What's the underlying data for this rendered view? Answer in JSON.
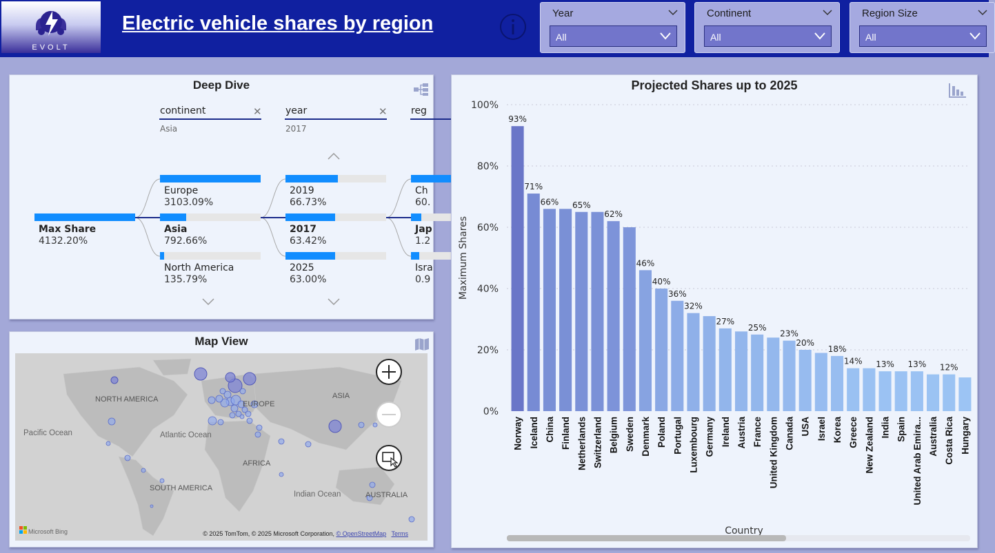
{
  "header": {
    "logo_text": "EVOLT",
    "title": "Electric vehicle shares by region"
  },
  "slicers": [
    {
      "title": "Year",
      "value": "All"
    },
    {
      "title": "Continent",
      "value": "All"
    },
    {
      "title": "Region Size",
      "value": "All"
    }
  ],
  "deep_dive": {
    "title": "Deep Dive",
    "levels": [
      {
        "label": "continent",
        "selection": "Asia"
      },
      {
        "label": "year",
        "selection": "2017"
      },
      {
        "label": "reg",
        "selection": ""
      }
    ],
    "root": {
      "name": "Max Share",
      "value": "4132.20%"
    },
    "continent_nodes": [
      {
        "name": "Europe",
        "value": "3103.09%",
        "fill": 1.0
      },
      {
        "name": "Asia",
        "value": "792.66%",
        "fill": 0.26
      },
      {
        "name": "North America",
        "value": "135.79%",
        "fill": 0.04
      }
    ],
    "year_nodes": [
      {
        "name": "2019",
        "value": "66.73%",
        "fill": 0.52
      },
      {
        "name": "2017",
        "value": "63.42%",
        "fill": 0.49
      },
      {
        "name": "2025",
        "value": "63.00%",
        "fill": 0.49
      }
    ],
    "region_nodes": [
      {
        "name": "Ch",
        "value": "60.",
        "fill": 1.0
      },
      {
        "name": "Jap",
        "value": "1.2",
        "fill": 0.1
      },
      {
        "name": "Isra",
        "value": "0.9",
        "fill": 0.08
      }
    ]
  },
  "map": {
    "title": "Map View",
    "labels": {
      "north_america": "NORTH AMERICA",
      "europe": "EUROPE",
      "asia": "ASIA",
      "pacific": "Pacific Ocean",
      "atlantic": "Atlantic Ocean",
      "africa": "AFRICA",
      "south_america": "SOUTH AMERICA",
      "indian": "Indian Ocean",
      "australia": "AUSTRALIA"
    },
    "bing": "Microsoft Bing",
    "attribution": "© 2025 TomTom, © 2025 Microsoft Corporation,",
    "osm_link": "© OpenStreetMap",
    "terms_link": "Terms"
  },
  "chart_data": {
    "type": "bar",
    "title": "Projected Shares up to 2025",
    "xlabel": "Country",
    "ylabel": "Maximum Shares",
    "ylim": [
      0,
      100
    ],
    "yticks": [
      "0%",
      "20%",
      "40%",
      "60%",
      "80%",
      "100%"
    ],
    "categories": [
      "Norway",
      "Iceland",
      "China",
      "Finland",
      "Netherlands",
      "Switzerland",
      "Belgium",
      "Sweden",
      "Denmark",
      "Poland",
      "Portugal",
      "Luxembourg",
      "Germany",
      "Ireland",
      "Austria",
      "France",
      "United Kingdom",
      "Canada",
      "USA",
      "Israel",
      "Korea",
      "Greece",
      "New Zealand",
      "India",
      "Spain",
      "United Arab Emira...",
      "Australia",
      "Costa Rica",
      "Hungary"
    ],
    "values": [
      93,
      71,
      66,
      66,
      65,
      65,
      62,
      60,
      46,
      40,
      36,
      32,
      31,
      27,
      26,
      25,
      24,
      23,
      20,
      19,
      18,
      14,
      14,
      13,
      13,
      13,
      12,
      12,
      11
    ],
    "data_labels": [
      "93%",
      "71%",
      "66%",
      "",
      "65%",
      "",
      "62%",
      "",
      "46%",
      "40%",
      "36%",
      "32%",
      "",
      "27%",
      "",
      "25%",
      "",
      "23%",
      "20%",
      "",
      "18%",
      "14%",
      "",
      "13%",
      "",
      "13%",
      "",
      "12%",
      ""
    ],
    "color_high": "#6a76c8",
    "color_low": "#9cc4f4",
    "grid": true
  }
}
